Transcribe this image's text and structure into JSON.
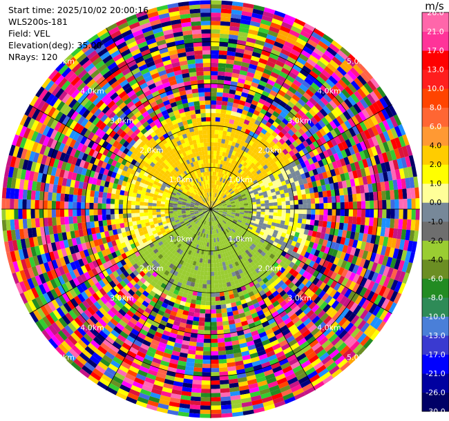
{
  "info": {
    "start_time": "Start time: 2025/10/02 20:00:16",
    "instrument": "WLS200s-181",
    "field": "Field: VEL",
    "elevation": "Elevation(deg): 35.00",
    "nrays": "NRays: 120"
  },
  "colorbar": {
    "unit": "m/s",
    "colors": [
      "#000066",
      "#0000a0",
      "#0000ff",
      "#3a3ad0",
      "#4a7fd8",
      "#2e8b57",
      "#228b22",
      "#6b8e23",
      "#9acd32",
      "#6e6e6e",
      "#778899",
      "#ffff99",
      "#ffff00",
      "#ffcc00",
      "#ff9933",
      "#ff6633",
      "#ff4400",
      "#ff1e1e",
      "#ff0000",
      "#ff3399",
      "#ff66aa"
    ],
    "labels": [
      "-30.0",
      "-26.0",
      "-21.0",
      "-17.0",
      "-13.0",
      "-10.0",
      "-8.0",
      "-6.0",
      "-4.0",
      "-2.0",
      "-1.0",
      "0.0",
      "1.0",
      "2.0",
      "4.0",
      "6.0",
      "8.0",
      "10.0",
      "13.0",
      "17.0",
      "21.0",
      "26.0"
    ]
  },
  "chart_data": {
    "type": "heatmap",
    "projection": "polar PPI",
    "field": "VEL",
    "units": "m/s",
    "elevation_deg": 35.0,
    "n_rays": 120,
    "range_rings_km": [
      1.0,
      2.0,
      3.0,
      4.0,
      5.0
    ],
    "ring_labels": [
      "1.0km",
      "2.0km",
      "3.0km",
      "4.0km",
      "5.0km"
    ],
    "max_range_km": 5.0,
    "color_scale": [
      -30.0,
      -26.0,
      -21.0,
      -17.0,
      -13.0,
      -10.0,
      -8.0,
      -6.0,
      -4.0,
      -2.0,
      -1.0,
      0.0,
      1.0,
      2.0,
      4.0,
      6.0,
      8.0,
      10.0,
      13.0,
      17.0,
      21.0,
      26.0
    ],
    "spokes_deg": [
      0,
      30,
      60,
      90,
      120,
      150,
      180,
      210,
      240,
      270,
      300,
      330
    ],
    "regions": [
      {
        "sector": "north (300-60 deg)",
        "range_km": [
          0.0,
          2.3
        ],
        "value_ms": 2.5
      },
      {
        "sector": "south (120-240 deg)",
        "range_km": [
          0.0,
          2.3
        ],
        "value_ms": -3.0
      },
      {
        "sector": "all",
        "range_km": [
          2.4,
          5.0
        ],
        "value_ms": "noise"
      }
    ]
  }
}
